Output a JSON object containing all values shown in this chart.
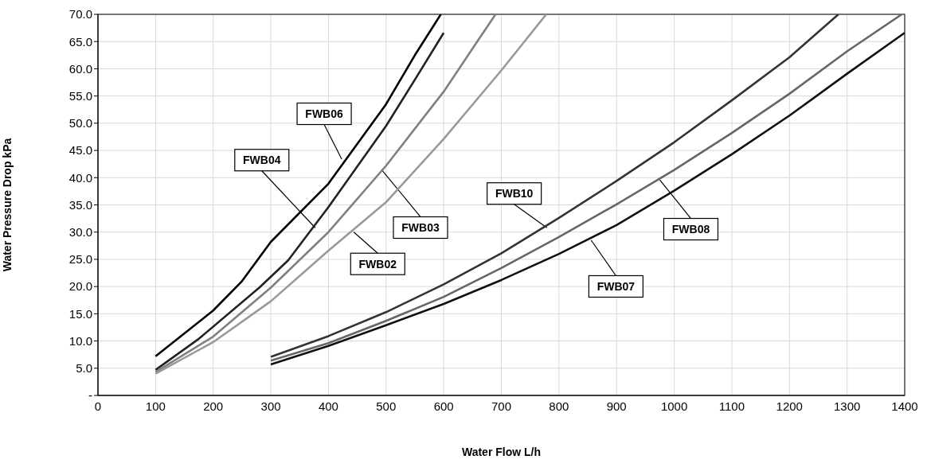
{
  "chart_data": {
    "type": "line",
    "xlabel": "Water Flow L/h",
    "ylabel": "Water Pressure Drop kPa",
    "xlim": [
      0,
      1400
    ],
    "xticks": [
      0,
      100,
      200,
      300,
      400,
      500,
      600,
      700,
      800,
      900,
      1000,
      1100,
      1200,
      1300,
      1400
    ],
    "ylim": [
      0,
      70
    ],
    "yticks": [
      {
        "value": 0,
        "label": "-"
      },
      {
        "value": 5,
        "label": "5.0"
      },
      {
        "value": 10,
        "label": "10.0"
      },
      {
        "value": 15,
        "label": "15.0"
      },
      {
        "value": 20,
        "label": "20.0"
      },
      {
        "value": 25,
        "label": "25.0"
      },
      {
        "value": 30,
        "label": "30.0"
      },
      {
        "value": 35,
        "label": "35.0"
      },
      {
        "value": 40,
        "label": "40.0"
      },
      {
        "value": 45,
        "label": "45.0"
      },
      {
        "value": 50,
        "label": "50.0"
      },
      {
        "value": 55,
        "label": "55.0"
      },
      {
        "value": 60,
        "label": "60.0"
      },
      {
        "value": 65,
        "label": "65.0"
      },
      {
        "value": 70,
        "label": "70.0"
      }
    ],
    "grid": true,
    "marker": "none",
    "line_style": "solid",
    "series": [
      {
        "color": "#000000",
        "x": [
          100,
          200,
          250,
          300,
          400,
          500,
          550,
          595
        ],
        "values": [
          7.2,
          15.6,
          21.0,
          28.2,
          38.9,
          53.5,
          62.5,
          70
        ]
      },
      {
        "color": "#222222",
        "x": [
          100,
          175,
          280,
          330,
          400,
          500,
          550,
          600
        ],
        "values": [
          4.7,
          10.4,
          19.8,
          24.8,
          34.6,
          49.5,
          58,
          66.6
        ]
      },
      {
        "color": "#808080",
        "x": [
          100,
          200,
          300,
          400,
          500,
          600,
          660,
          690
        ],
        "values": [
          4.3,
          10.8,
          19.8,
          30.0,
          42.2,
          55.8,
          65.3,
          70
        ]
      },
      {
        "color": "#999999",
        "x": [
          100,
          200,
          300,
          400,
          500,
          600,
          700,
          778
        ],
        "values": [
          4.0,
          9.8,
          17.3,
          26.6,
          35.5,
          47.1,
          59.7,
          70
        ]
      },
      {
        "color": "#333333",
        "x": [
          300,
          400,
          500,
          600,
          700,
          800,
          900,
          1000,
          1100,
          1200,
          1285
        ],
        "values": [
          7.1,
          10.9,
          15.3,
          20.4,
          26.1,
          32.6,
          39.4,
          46.5,
          54.2,
          62.1,
          70
        ]
      },
      {
        "color": "#666666",
        "x": [
          300,
          400,
          500,
          600,
          700,
          800,
          900,
          1000,
          1100,
          1200,
          1300,
          1395
        ],
        "values": [
          6.4,
          9.6,
          13.7,
          18.1,
          23.4,
          29.1,
          35.1,
          41.4,
          48.2,
          55.4,
          63.2,
          70
        ]
      },
      {
        "color": "#111111",
        "x": [
          300,
          400,
          500,
          600,
          700,
          800,
          900,
          1000,
          1100,
          1200,
          1300,
          1400
        ],
        "values": [
          5.7,
          9.1,
          12.9,
          16.8,
          21.2,
          26.0,
          31.3,
          37.6,
          44.3,
          51.4,
          59.1,
          66.6
        ]
      }
    ],
    "annotations": [
      {
        "text": "FWB06",
        "x": 423,
        "y": 43.4
      },
      {
        "text": "FWB04",
        "x": 377,
        "y": 30.8
      },
      {
        "text": "FWB03",
        "x": 492,
        "y": 41.5
      },
      {
        "text": "FWB02",
        "x": 444,
        "y": 30
      },
      {
        "text": "FWB10",
        "x": 779,
        "y": 30.8
      },
      {
        "text": "FWB08",
        "x": 975,
        "y": 39.6
      },
      {
        "text": "FWB07",
        "x": 856,
        "y": 28.5
      }
    ]
  }
}
